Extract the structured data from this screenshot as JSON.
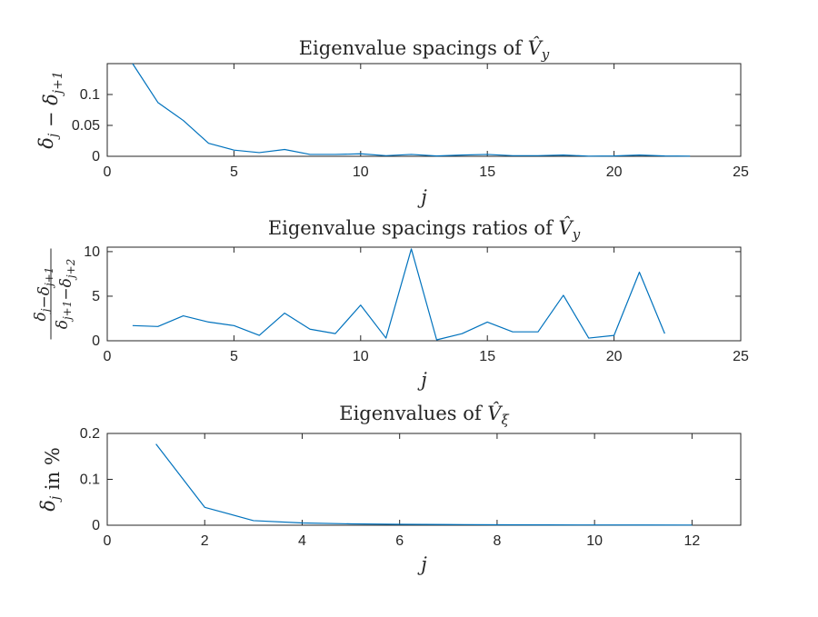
{
  "chart_data": [
    {
      "type": "line",
      "title": "Eigenvalue spacings of V̂_y",
      "xlabel": "j",
      "ylabel": "δ_j − δ_{j+1}",
      "xlim": [
        0,
        25
      ],
      "ylim": [
        0,
        0.15
      ],
      "xticks": [
        0,
        5,
        10,
        15,
        20,
        25
      ],
      "xtick_labels": [
        "0",
        "5",
        "10",
        "15",
        "20",
        "25"
      ],
      "yticks": [
        0,
        0.05,
        0.1
      ],
      "ytick_labels": [
        "0",
        "0.05",
        "0.1"
      ],
      "grid": false,
      "series": [
        {
          "x": [
            1,
            2,
            3,
            4,
            5,
            6,
            7,
            8,
            9,
            10,
            11,
            12,
            13,
            14,
            15,
            16,
            17,
            18,
            19,
            20,
            21,
            22,
            23
          ],
          "values": [
            0.15,
            0.087,
            0.058,
            0.021,
            0.01,
            0.006,
            0.011,
            0.003,
            0.003,
            0.004,
            0.001,
            0.003,
            0.0005,
            0.002,
            0.003,
            0.001,
            0.001,
            0.002,
            0.0003,
            0.0005,
            0.002,
            0.0005,
            0.0003
          ]
        }
      ]
    },
    {
      "type": "line",
      "title": "Eigenvalue spacings ratios of V̂_y",
      "xlabel": "j",
      "ylabel_numerator": "δ_j − δ_{j+1}",
      "ylabel_denominator": "δ_{j+1} − δ_{j+2}",
      "xlim": [
        0,
        25
      ],
      "ylim": [
        0,
        10.5
      ],
      "xticks": [
        0,
        5,
        10,
        15,
        20,
        25
      ],
      "xtick_labels": [
        "0",
        "5",
        "10",
        "15",
        "20",
        "25"
      ],
      "yticks": [
        0,
        5,
        10
      ],
      "ytick_labels": [
        "0",
        "5",
        "10"
      ],
      "grid": false,
      "series": [
        {
          "x": [
            1,
            2,
            3,
            4,
            5,
            6,
            7,
            8,
            9,
            10,
            11,
            12,
            13,
            14,
            15,
            16,
            17,
            18,
            19,
            20,
            21,
            22
          ],
          "values": [
            1.7,
            1.6,
            2.8,
            2.1,
            1.7,
            0.6,
            3.1,
            1.3,
            0.8,
            4.0,
            0.3,
            10.3,
            0.1,
            0.8,
            2.1,
            1.0,
            1.0,
            5.1,
            0.3,
            0.6,
            7.7,
            0.8
          ]
        }
      ]
    },
    {
      "type": "line",
      "title": "Eigenvalues of V̂_ξ",
      "xlabel": "j",
      "ylabel": "δ_j in %",
      "xlim": [
        0,
        13
      ],
      "ylim": [
        0,
        0.2
      ],
      "xticks": [
        0,
        2,
        4,
        6,
        8,
        10,
        12
      ],
      "xtick_labels": [
        "0",
        "2",
        "4",
        "6",
        "8",
        "10",
        "12"
      ],
      "yticks": [
        0,
        0.1,
        0.2
      ],
      "ytick_labels": [
        "0",
        "0.1",
        "0.2"
      ],
      "grid": false,
      "series": [
        {
          "x": [
            1,
            2,
            3,
            4,
            5,
            6,
            7,
            8,
            9,
            10,
            11,
            12
          ],
          "values": [
            0.177,
            0.039,
            0.01,
            0.005,
            0.003,
            0.002,
            0.0015,
            0.001,
            0.0008,
            0.0006,
            0.0005,
            0.0004
          ]
        }
      ]
    }
  ],
  "colors": {
    "series": "#0072bd",
    "axes": "#262626"
  }
}
